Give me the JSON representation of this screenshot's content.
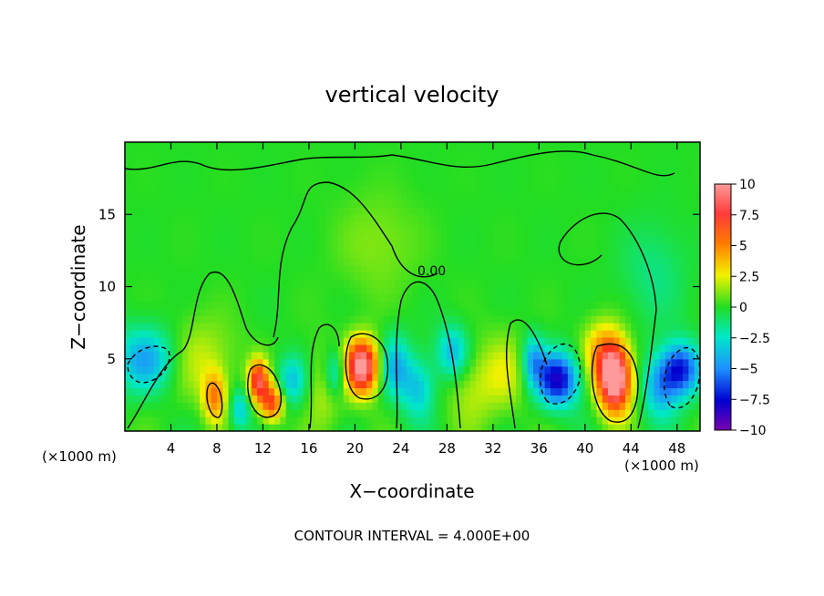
{
  "chart_data": {
    "type": "heatmap",
    "title": "vertical velocity",
    "xlabel": "X−coordinate",
    "ylabel": "Z−coordinate",
    "x_unit_left": "(×1000 m)",
    "x_unit_right": "(×1000 m)",
    "footer": "CONTOUR INTERVAL = 4.000E+00",
    "xlim": [
      0,
      50
    ],
    "ylim": [
      0,
      20
    ],
    "x_ticks": [
      4,
      8,
      12,
      16,
      20,
      24,
      28,
      32,
      36,
      40,
      44,
      48
    ],
    "x_tick_labels": [
      "4",
      "8",
      "12",
      "16",
      "20",
      "24",
      "28",
      "32",
      "36",
      "40",
      "44",
      "48"
    ],
    "y_ticks": [
      5,
      10,
      15
    ],
    "y_tick_labels": [
      "5",
      "10",
      "15"
    ],
    "colorbar": {
      "levels": [
        10,
        7.5,
        5,
        2.5,
        0,
        -2.5,
        -5,
        -7.5,
        -10
      ],
      "labels": [
        "10",
        "7.5",
        "5",
        "2.5",
        "0",
        "−2.5",
        "−5",
        "−7.5",
        "−10"
      ],
      "colors": [
        "#ff9a9a",
        "#ff2a1a",
        "#ff8c00",
        "#f2f200",
        "#22dd22",
        "#00e8c8",
        "#1e90ff",
        "#0000d0",
        "#7a00b0"
      ]
    },
    "contour_label": "0.00",
    "blobs": [
      {
        "x": 2.0,
        "z": 5.0,
        "w": -4.8,
        "sx": 2.0,
        "sz": 1.6
      },
      {
        "x": 6.0,
        "z": 5.0,
        "w": 2.2,
        "sx": 2.5,
        "sz": 2.0
      },
      {
        "x": 7.8,
        "z": 2.4,
        "w": 5.0,
        "sx": 0.7,
        "sz": 1.2
      },
      {
        "x": 10.0,
        "z": 1.5,
        "w": -3.5,
        "sx": 0.6,
        "sz": 1.0
      },
      {
        "x": 11.6,
        "z": 3.5,
        "w": 8.0,
        "sx": 0.6,
        "sz": 1.0
      },
      {
        "x": 12.8,
        "z": 2.0,
        "w": 7.0,
        "sx": 0.7,
        "sz": 0.9
      },
      {
        "x": 14.5,
        "z": 3.5,
        "w": -3.5,
        "sx": 0.9,
        "sz": 1.2
      },
      {
        "x": 18.3,
        "z": 4.0,
        "w": -4.0,
        "sx": 0.7,
        "sz": 1.2
      },
      {
        "x": 20.6,
        "z": 4.5,
        "w": 11.0,
        "sx": 1.0,
        "sz": 1.3
      },
      {
        "x": 23.5,
        "z": 4.5,
        "w": -4.0,
        "sx": 0.9,
        "sz": 1.5
      },
      {
        "x": 25.5,
        "z": 3.0,
        "w": -3.5,
        "sx": 1.0,
        "sz": 1.5
      },
      {
        "x": 28.5,
        "z": 5.5,
        "w": -4.0,
        "sx": 1.0,
        "sz": 1.3
      },
      {
        "x": 33.0,
        "z": 4.0,
        "w": 2.0,
        "sx": 1.5,
        "sz": 2.0
      },
      {
        "x": 37.6,
        "z": 3.6,
        "w": -8.0,
        "sx": 1.3,
        "sz": 1.3
      },
      {
        "x": 35.5,
        "z": 5.0,
        "w": -4.0,
        "sx": 0.7,
        "sz": 1.2
      },
      {
        "x": 42.6,
        "z": 3.6,
        "w": 12.0,
        "sx": 1.0,
        "sz": 1.6
      },
      {
        "x": 41.5,
        "z": 5.5,
        "w": 4.0,
        "sx": 1.2,
        "sz": 1.5
      },
      {
        "x": 48.3,
        "z": 4.3,
        "w": -7.0,
        "sx": 1.2,
        "sz": 1.3
      },
      {
        "x": 46.5,
        "z": 3.0,
        "w": -4.0,
        "sx": 1.1,
        "sz": 1.5
      },
      {
        "x": 17.5,
        "z": 3.0,
        "w": 2.0,
        "sx": 1.2,
        "sz": 2.0
      },
      {
        "x": 30.0,
        "z": 3.0,
        "w": 1.6,
        "sx": 1.5,
        "sz": 2.0
      },
      {
        "x": 22.0,
        "z": 13.0,
        "w": 1.2,
        "sx": 2.5,
        "sz": 2.5
      },
      {
        "x": 46.0,
        "z": 11.0,
        "w": -1.4,
        "sx": 2.0,
        "sz": 2.5
      }
    ]
  }
}
